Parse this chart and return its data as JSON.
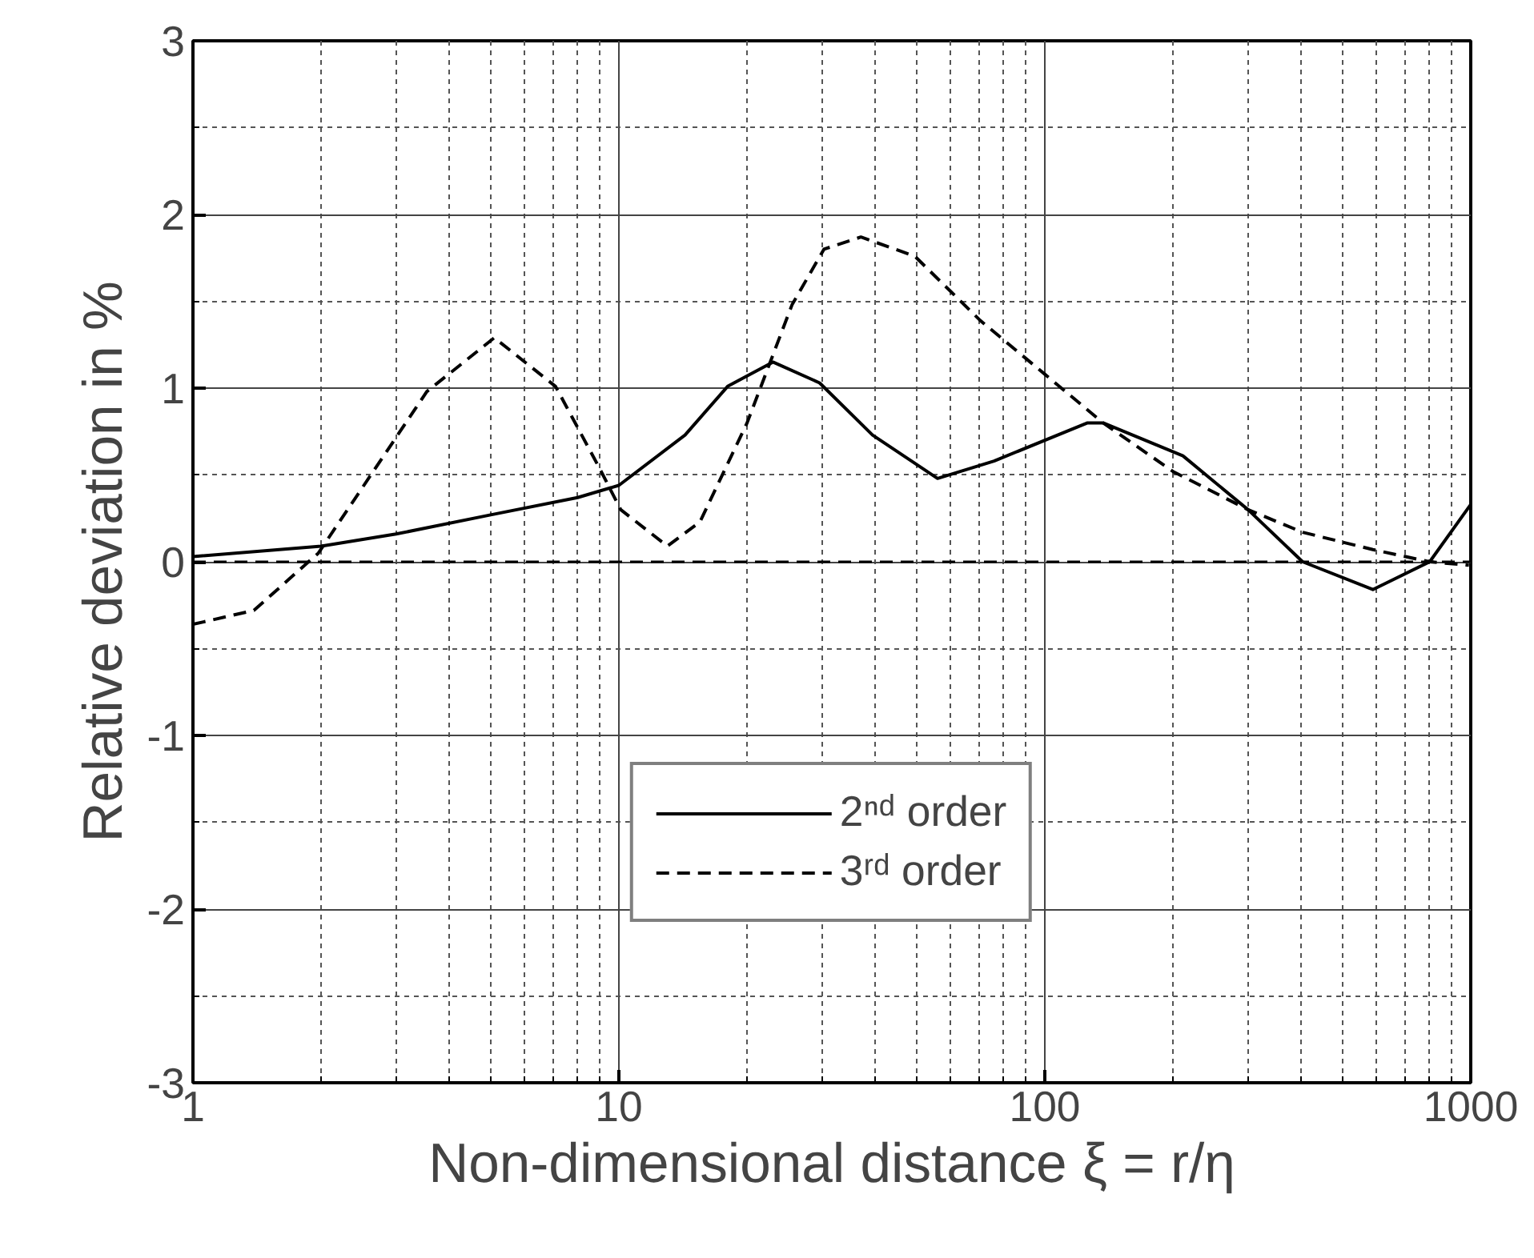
{
  "chart_data": {
    "type": "line",
    "xlabel": "Non-dimensional distance ξ = r/η",
    "ylabel": "Relative deviation in %",
    "log": "x",
    "xlim": [
      1,
      1000
    ],
    "xticks": [
      1,
      10,
      100,
      1000
    ],
    "ylim": [
      -3,
      3
    ],
    "yticks": [
      -3,
      -2,
      -1,
      0,
      1,
      2,
      3
    ],
    "grid": true,
    "legend": "bottom",
    "ref_lines": [
      {
        "axis": "y",
        "value": 0,
        "line_style": "dashed"
      }
    ],
    "series": [
      {
        "name": "2ⁿᵈ order",
        "color": "#000000",
        "line_style": "solid",
        "x": [
          1,
          2,
          3,
          5,
          8,
          10,
          14.3,
          18,
          23,
          29.6,
          39.4,
          56,
          76,
          126,
          137,
          211,
          300,
          403,
          589,
          801,
          1000
        ],
        "values": [
          0.03,
          0.09,
          0.16,
          0.27,
          0.37,
          0.44,
          0.73,
          1.01,
          1.15,
          1.03,
          0.73,
          0.48,
          0.58,
          0.8,
          0.8,
          0.61,
          0.3,
          0,
          -0.16,
          0,
          0.33
        ]
      },
      {
        "name": "3ʳᵈ order",
        "color": "#000000",
        "line_style": "dashed",
        "x": [
          1,
          1.39,
          1.97,
          2.65,
          3.54,
          5.1,
          7.1,
          9,
          10.1,
          13,
          15.5,
          20,
          25.5,
          30.3,
          37,
          49.5,
          70.5,
          100,
          137,
          200,
          300,
          403,
          589,
          801,
          990
        ],
        "values": [
          -0.36,
          -0.28,
          0.05,
          0.52,
          0.98,
          1.29,
          1.01,
          0.54,
          0.3,
          0.09,
          0.23,
          0.8,
          1.48,
          1.8,
          1.87,
          1.76,
          1.39,
          1.08,
          0.8,
          0.52,
          0.3,
          0.17,
          0.07,
          0,
          -0.02
        ]
      }
    ]
  }
}
